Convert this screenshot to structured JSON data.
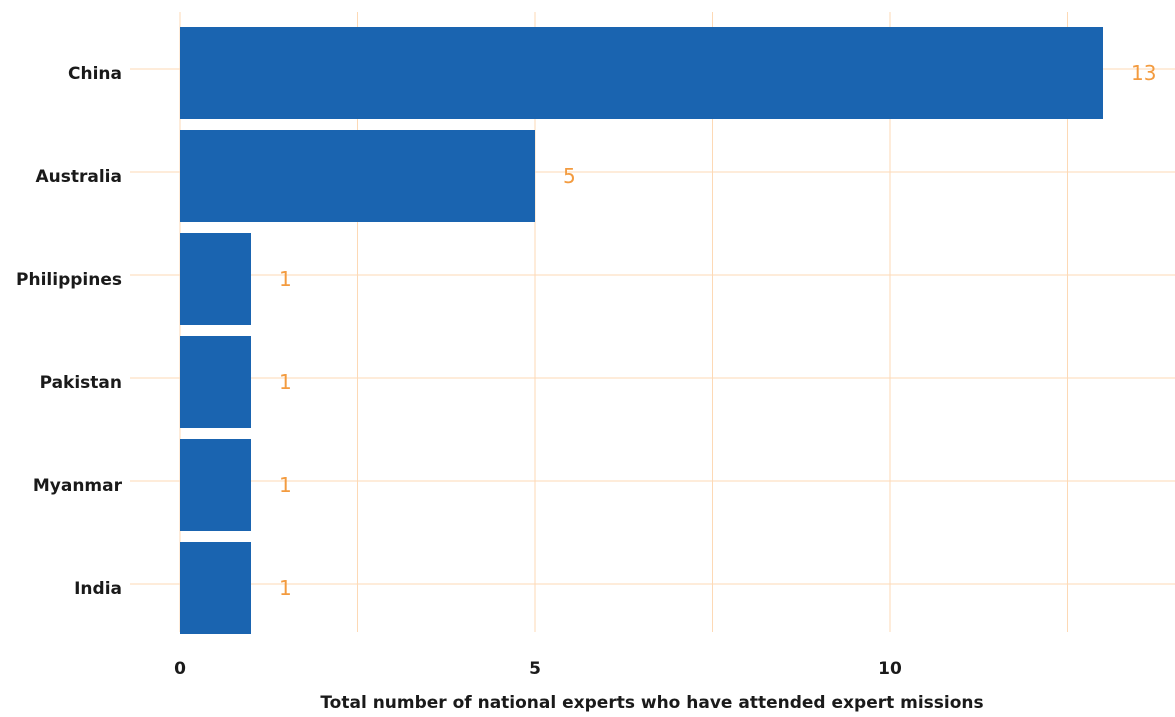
{
  "chart_data": {
    "type": "bar",
    "orientation": "horizontal",
    "categories": [
      "China",
      "Australia",
      "Philippines",
      "Pakistan",
      "Myanmar",
      "India"
    ],
    "values": [
      13,
      5,
      1,
      1,
      1,
      1
    ],
    "title": "",
    "xlabel": "Total number of national experts who have attended expert missions",
    "ylabel": "",
    "xlim": [
      0,
      14
    ],
    "x_ticks": [
      0,
      5,
      10
    ],
    "grid": true,
    "data_labels": true
  },
  "colors": {
    "bar": "#1a64b0",
    "grid": "#fdd9b5",
    "value_label": "#f39b3f"
  }
}
